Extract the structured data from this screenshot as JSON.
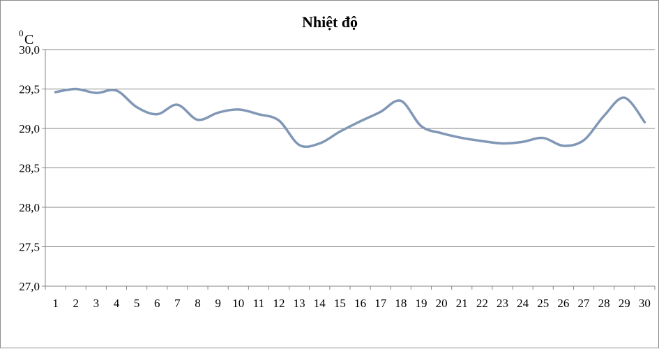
{
  "chart_data": {
    "type": "line",
    "title": "Nhiệt độ",
    "ylabel_sup": "0",
    "ylabel": "C",
    "xlabel": "",
    "ylim": [
      27.0,
      30.0
    ],
    "ytick_step": 0.5,
    "yticks": [
      "27,0",
      "27,5",
      "28,0",
      "28,5",
      "29,0",
      "29,5",
      "30,0"
    ],
    "grid": true,
    "smooth": true,
    "line_color": "#8197b6",
    "categories": [
      "1",
      "2",
      "3",
      "4",
      "5",
      "6",
      "7",
      "8",
      "9",
      "10",
      "11",
      "12",
      "13",
      "14",
      "15",
      "16",
      "17",
      "18",
      "19",
      "20",
      "21",
      "22",
      "23",
      "24",
      "25",
      "26",
      "27",
      "28",
      "29",
      "30"
    ],
    "values": [
      29.46,
      29.5,
      29.45,
      29.48,
      29.27,
      29.18,
      29.3,
      29.11,
      29.2,
      29.24,
      29.18,
      29.1,
      28.79,
      28.81,
      28.96,
      29.09,
      29.21,
      29.35,
      29.03,
      28.94,
      28.88,
      28.84,
      28.81,
      28.83,
      28.88,
      28.78,
      28.85,
      29.16,
      29.39,
      29.08
    ]
  }
}
